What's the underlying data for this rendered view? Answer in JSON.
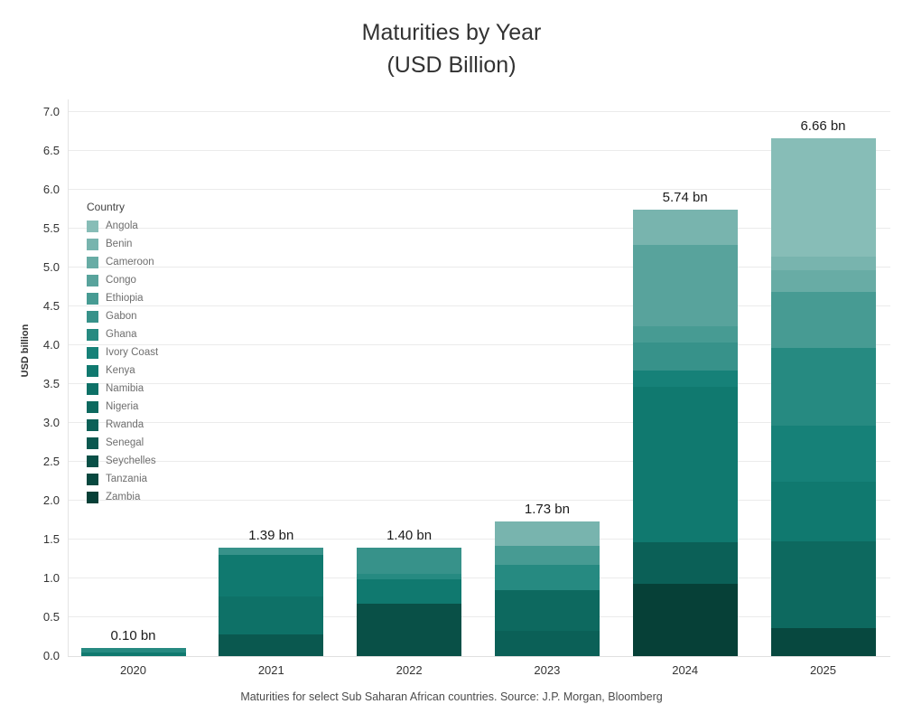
{
  "title": {
    "line1": "Maturities by Year",
    "line2": "(USD Billion)"
  },
  "footer": {
    "text": "Maturities for select Sub Saharan African countries. Source: J.P. Morgan, Bloomberg"
  },
  "chart_data": {
    "type": "bar",
    "stacked": true,
    "title": "Maturities by Year (USD Billion)",
    "ylabel": "USD billion",
    "xlabel": "",
    "ylim": [
      0,
      7.0
    ],
    "grid": true,
    "legend_title": "Country",
    "legend_position": "inside-left",
    "y_ticks": [
      "0.0",
      "0.5",
      "1.0",
      "1.5",
      "2.0",
      "2.5",
      "3.0",
      "3.5",
      "4.0",
      "4.5",
      "5.0",
      "5.5",
      "6.0",
      "6.5",
      "7.0"
    ],
    "categories": [
      "2020",
      "2021",
      "2022",
      "2023",
      "2024",
      "2025"
    ],
    "totals": [
      0.1,
      1.39,
      1.4,
      1.73,
      5.74,
      6.66
    ],
    "total_labels": [
      "0.10 bn",
      "1.39 bn",
      "1.40 bn",
      "1.73 bn",
      "5.74 bn",
      "6.66 bn"
    ],
    "series": [
      {
        "name": "Angola",
        "color": "#87BDB7",
        "values": [
          0,
          0,
          0,
          0,
          0,
          1.52
        ]
      },
      {
        "name": "Benin",
        "color": "#78B4AE",
        "values": [
          0,
          0,
          0,
          0.31,
          0.45,
          0.18
        ]
      },
      {
        "name": "Cameroon",
        "color": "#68ACA5",
        "values": [
          0,
          0,
          0,
          0,
          0,
          0.27
        ]
      },
      {
        "name": "Congo",
        "color": "#58A39C",
        "values": [
          0,
          0,
          0,
          0,
          1.04,
          0
        ]
      },
      {
        "name": "Ethiopia",
        "color": "#479B93",
        "values": [
          0,
          0,
          0,
          0.25,
          0.21,
          0.72
        ]
      },
      {
        "name": "Gabon",
        "color": "#37928A",
        "values": [
          0,
          0.09,
          0.34,
          0,
          0.36,
          0
        ]
      },
      {
        "name": "Ghana",
        "color": "#268A81",
        "values": [
          0.05,
          0,
          0.07,
          0.32,
          0,
          1.01
        ]
      },
      {
        "name": "Ivory Coast",
        "color": "#168178",
        "values": [
          0,
          0,
          0,
          0,
          0.21,
          0.72
        ]
      },
      {
        "name": "Kenya",
        "color": "#10796F",
        "values": [
          0.05,
          0.53,
          0.32,
          0,
          2.01,
          0.76
        ]
      },
      {
        "name": "Namibia",
        "color": "#0E7167",
        "values": [
          0,
          0.49,
          0,
          0,
          0,
          0
        ]
      },
      {
        "name": "Nigeria",
        "color": "#0D695F",
        "values": [
          0,
          0,
          0,
          0.53,
          0,
          1.12
        ]
      },
      {
        "name": "Rwanda",
        "color": "#0B6057",
        "values": [
          0,
          0,
          0,
          0.32,
          0.53,
          0
        ]
      },
      {
        "name": "Senegal",
        "color": "#0A584F",
        "values": [
          0,
          0.28,
          0,
          0,
          0,
          0
        ]
      },
      {
        "name": "Seychelles",
        "color": "#095047",
        "values": [
          0,
          0,
          0.67,
          0,
          0,
          0
        ]
      },
      {
        "name": "Tanzania",
        "color": "#07483F",
        "values": [
          0,
          0,
          0,
          0,
          0,
          0.36
        ]
      },
      {
        "name": "Zambia",
        "color": "#064037",
        "values": [
          0,
          0,
          0,
          0,
          0.93,
          0
        ]
      }
    ]
  }
}
